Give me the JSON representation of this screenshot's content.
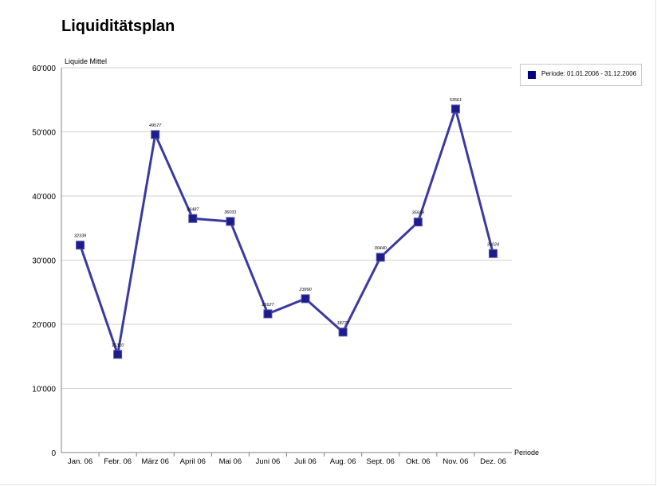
{
  "chart_data": {
    "type": "line",
    "title": "Liquiditätsplan",
    "ylabel": "Liquide Mittel",
    "xlabel": "Periode",
    "categories": [
      "Jan. 06",
      "Febr. 06",
      "März 06",
      "April 06",
      "Mai 06",
      "Juni 06",
      "Juli 06",
      "Aug. 06",
      "Sept. 06",
      "Okt. 06",
      "Nov. 06",
      "Dez. 06"
    ],
    "series": [
      {
        "name": "Periode: 01.01.2006 - 31.12.2006",
        "values": [
          32339,
          15310,
          49577,
          36487,
          36031,
          21627,
          23990,
          18777,
          30440,
          35939,
          53561,
          31024
        ],
        "labels": [
          "32339",
          "15310",
          "49577",
          "36487",
          "36031",
          "21627",
          "23990",
          "18777",
          "30440",
          "35939",
          "53561",
          "31024"
        ]
      }
    ],
    "ylim": [
      0,
      60000
    ],
    "yticks": [
      0,
      10000,
      20000,
      30000,
      40000,
      50000,
      60000
    ],
    "ytick_labels": [
      "0",
      "10'000",
      "20'000",
      "30'000",
      "40'000",
      "50'000",
      "60'000"
    ],
    "grid": true,
    "legend": "top-right",
    "colors": {
      "line": "#3a3aa0",
      "marker": "#1c1c8a",
      "grid": "#d0d0d0",
      "axis": "#808080",
      "legend_marker": "#000080"
    }
  }
}
